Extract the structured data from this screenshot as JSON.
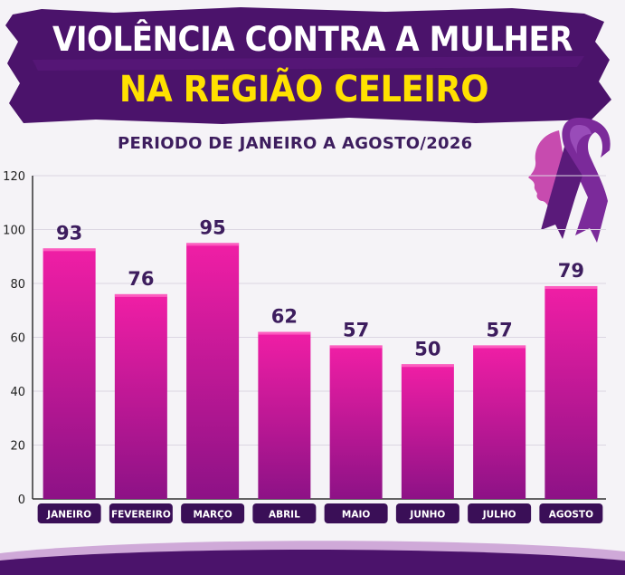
{
  "header": {
    "title_line1": "VIOLÊNCIA CONTRA A MULHER",
    "title_line2": "NA REGIÃO CELEIRO",
    "subtitle": "PERIODO DE JANEIRO A AGOSTO/2026"
  },
  "colors": {
    "banner": "#4b136b",
    "title_line1": "#ffffff",
    "title_line2": "#ffe100",
    "bar_top": "#f01ea5",
    "bar_bottom": "#8d1286",
    "value_label": "#3d1d5e",
    "category_badge": "#3a0f57",
    "ribbon": "#7b2a9a",
    "face_silhouette": "#c238a6"
  },
  "icons": [
    "awareness-ribbon-icon",
    "woman-face-silhouette-icon"
  ],
  "chart_data": {
    "type": "bar",
    "title": "",
    "xlabel": "",
    "ylabel": "",
    "categories": [
      "JANEIRO",
      "FEVEREIRO",
      "MARÇO",
      "ABRIL",
      "MAIO",
      "JUNHO",
      "JULHO",
      "AGOSTO"
    ],
    "values": [
      93,
      76,
      95,
      62,
      57,
      50,
      57,
      79
    ],
    "value_labels": [
      "93",
      "76",
      "95",
      "62",
      "57",
      "50",
      "57",
      "79"
    ],
    "ylim": [
      0,
      120
    ],
    "yticks": [
      0,
      20,
      40,
      60,
      80,
      100,
      120
    ],
    "ytick_labels": [
      "0",
      "20",
      "40",
      "60",
      "80",
      "100",
      "120"
    ],
    "grid": true,
    "legend": "none"
  }
}
